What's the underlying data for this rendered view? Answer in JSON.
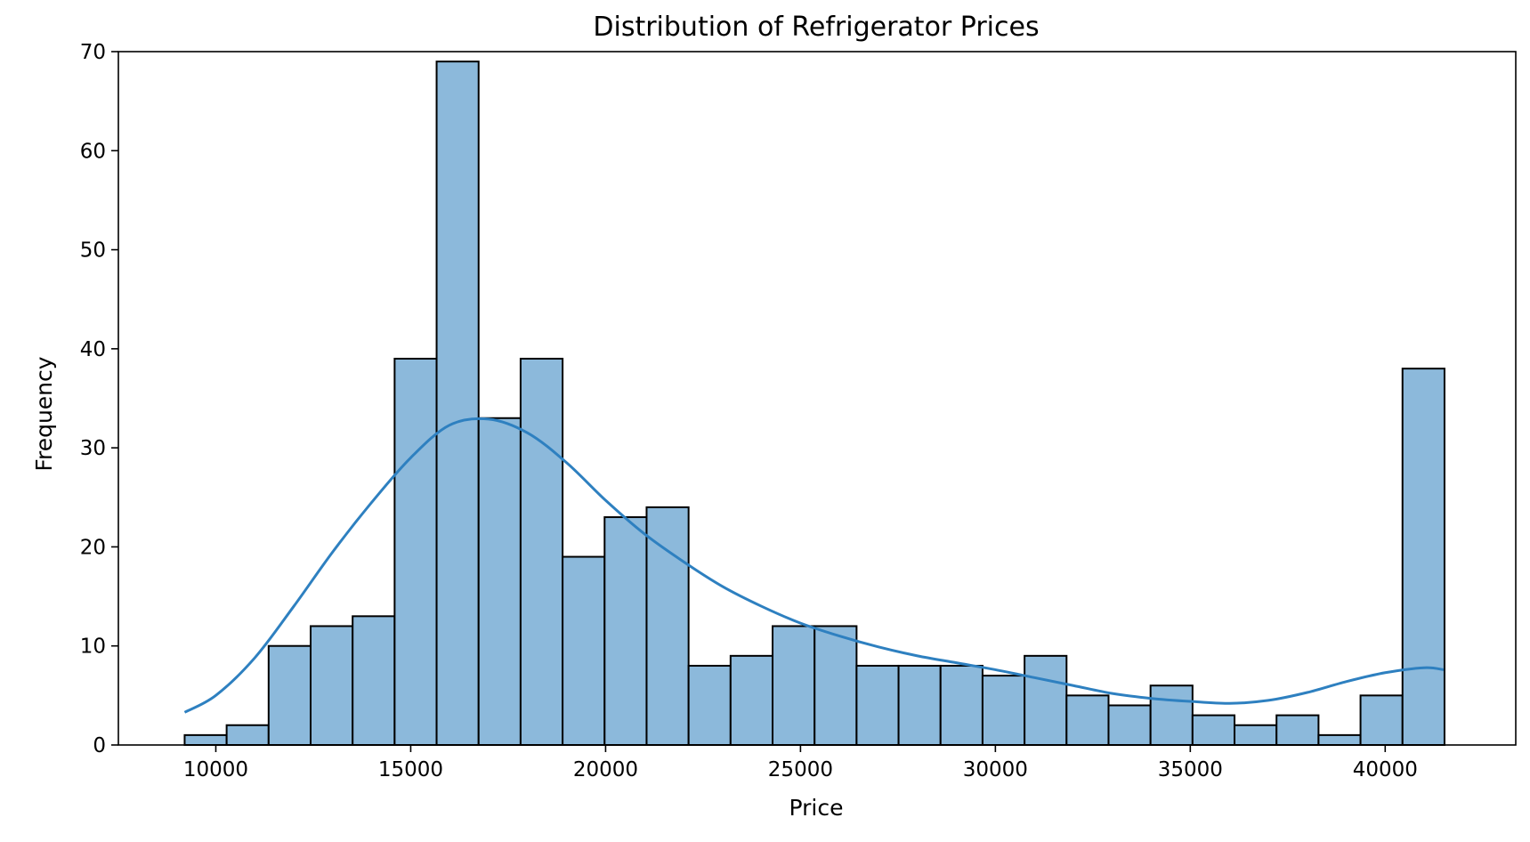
{
  "chart_data": {
    "type": "bar",
    "title": "Distribution of Refrigerator Prices",
    "xlabel": "Price",
    "ylabel": "Frequency",
    "xlim": [
      7500,
      43350
    ],
    "ylim": [
      0,
      70
    ],
    "xticks": [
      10000,
      15000,
      20000,
      25000,
      30000,
      35000,
      40000
    ],
    "yticks": [
      0,
      10,
      20,
      30,
      40,
      50,
      60,
      70
    ],
    "grid": false,
    "legend": "none",
    "bin_start": 9200,
    "bin_width": 1077.4,
    "values": [
      1,
      2,
      10,
      12,
      13,
      39,
      69,
      33,
      39,
      19,
      23,
      24,
      8,
      9,
      12,
      12,
      8,
      8,
      8,
      7,
      9,
      5,
      4,
      6,
      3,
      2,
      3,
      1,
      5,
      38
    ],
    "kde": {
      "x": [
        9200,
        10000,
        11000,
        12000,
        13000,
        14000,
        15000,
        16000,
        17000,
        18000,
        19000,
        20000,
        21000,
        22000,
        23000,
        24000,
        25000,
        26000,
        27000,
        28000,
        29000,
        30000,
        31000,
        32000,
        33000,
        34000,
        35000,
        36000,
        37000,
        38000,
        39000,
        40000,
        41000,
        41500
      ],
      "y": [
        3.3,
        5,
        8.8,
        14,
        19.5,
        24.5,
        29,
        32.3,
        32.9,
        31.5,
        28.5,
        24.7,
        21.3,
        18.5,
        16,
        14,
        12.3,
        11,
        9.9,
        9,
        8.3,
        7.6,
        6.8,
        6,
        5.2,
        4.7,
        4.4,
        4.2,
        4.5,
        5.3,
        6.4,
        7.3,
        7.8,
        7.6
      ]
    },
    "colors": {
      "bar_fill": "#8cb9db",
      "bar_edge": "#000000",
      "kde_line": "#2e80c0"
    }
  }
}
